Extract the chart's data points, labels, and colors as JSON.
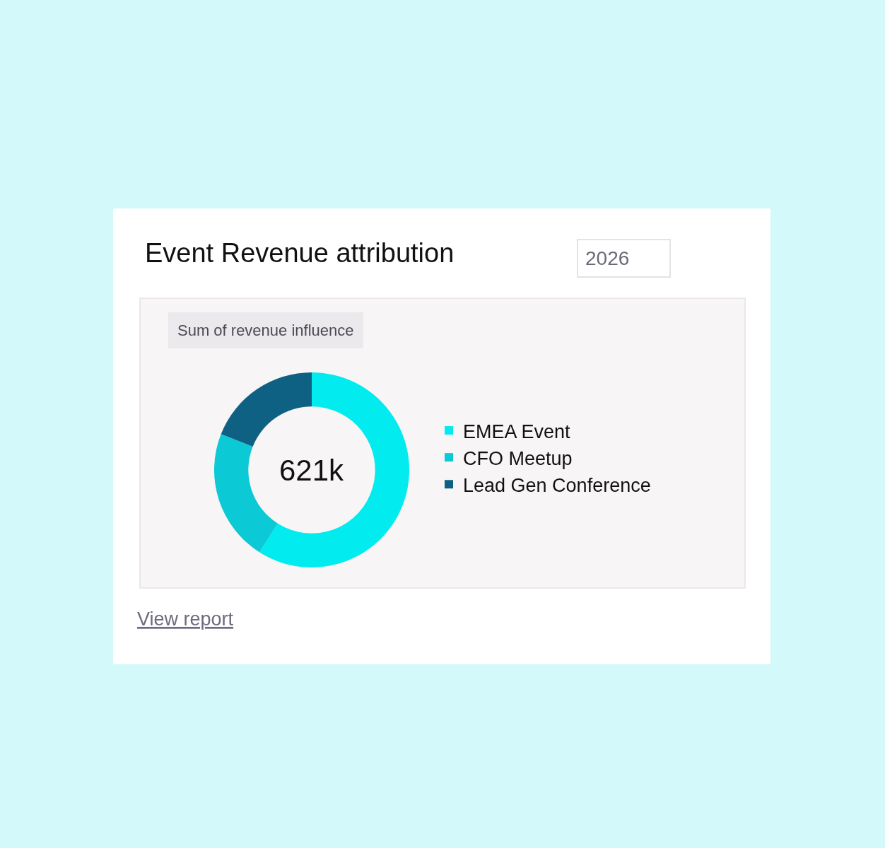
{
  "chart_data": {
    "type": "donut",
    "title": "Event Revenue attribution",
    "categories": [
      "EMEA Event",
      "CFO Meetup",
      "Lead Gen Conference"
    ],
    "values": [
      59,
      22,
      19
    ],
    "colors": [
      "#02ebef",
      "#0bc9d5",
      "#0f6184"
    ],
    "legend": "right",
    "annotations": [
      "2026",
      "Sum of revenue influence",
      "621k",
      "View report"
    ]
  }
}
